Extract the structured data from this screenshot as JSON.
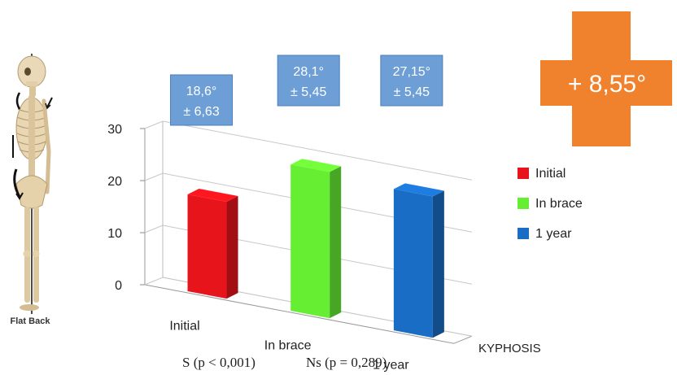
{
  "figure": {
    "caption": "Flat Back"
  },
  "summary": {
    "change_text": "+ 8,55°",
    "color": "#f0822e"
  },
  "significance": [
    "S (p < 0,001)",
    "Ns (p = 0,289)"
  ],
  "chart_data": {
    "type": "bar",
    "categories": [
      "Initial",
      "In brace",
      "1 year"
    ],
    "values": [
      18.6,
      28.1,
      27.15
    ],
    "colors": [
      "#e8141c",
      "#66ee33",
      "#1a6dc4"
    ],
    "ylim": [
      0,
      30
    ],
    "yticks": [
      0,
      10,
      20,
      30
    ],
    "xlabel": "KYPHOSIS",
    "ylabel": "",
    "grid": true,
    "legend": {
      "position": "right",
      "entries": [
        "Initial",
        "In brace",
        "1 year"
      ]
    },
    "annotations": [
      {
        "line1": "18,6°",
        "line2": "± 6,63"
      },
      {
        "line1": "28,1°",
        "line2": "± 5,45"
      },
      {
        "line1": "27,15°",
        "line2": "± 5,45"
      }
    ],
    "annotation_color": "#6d9fd6"
  }
}
